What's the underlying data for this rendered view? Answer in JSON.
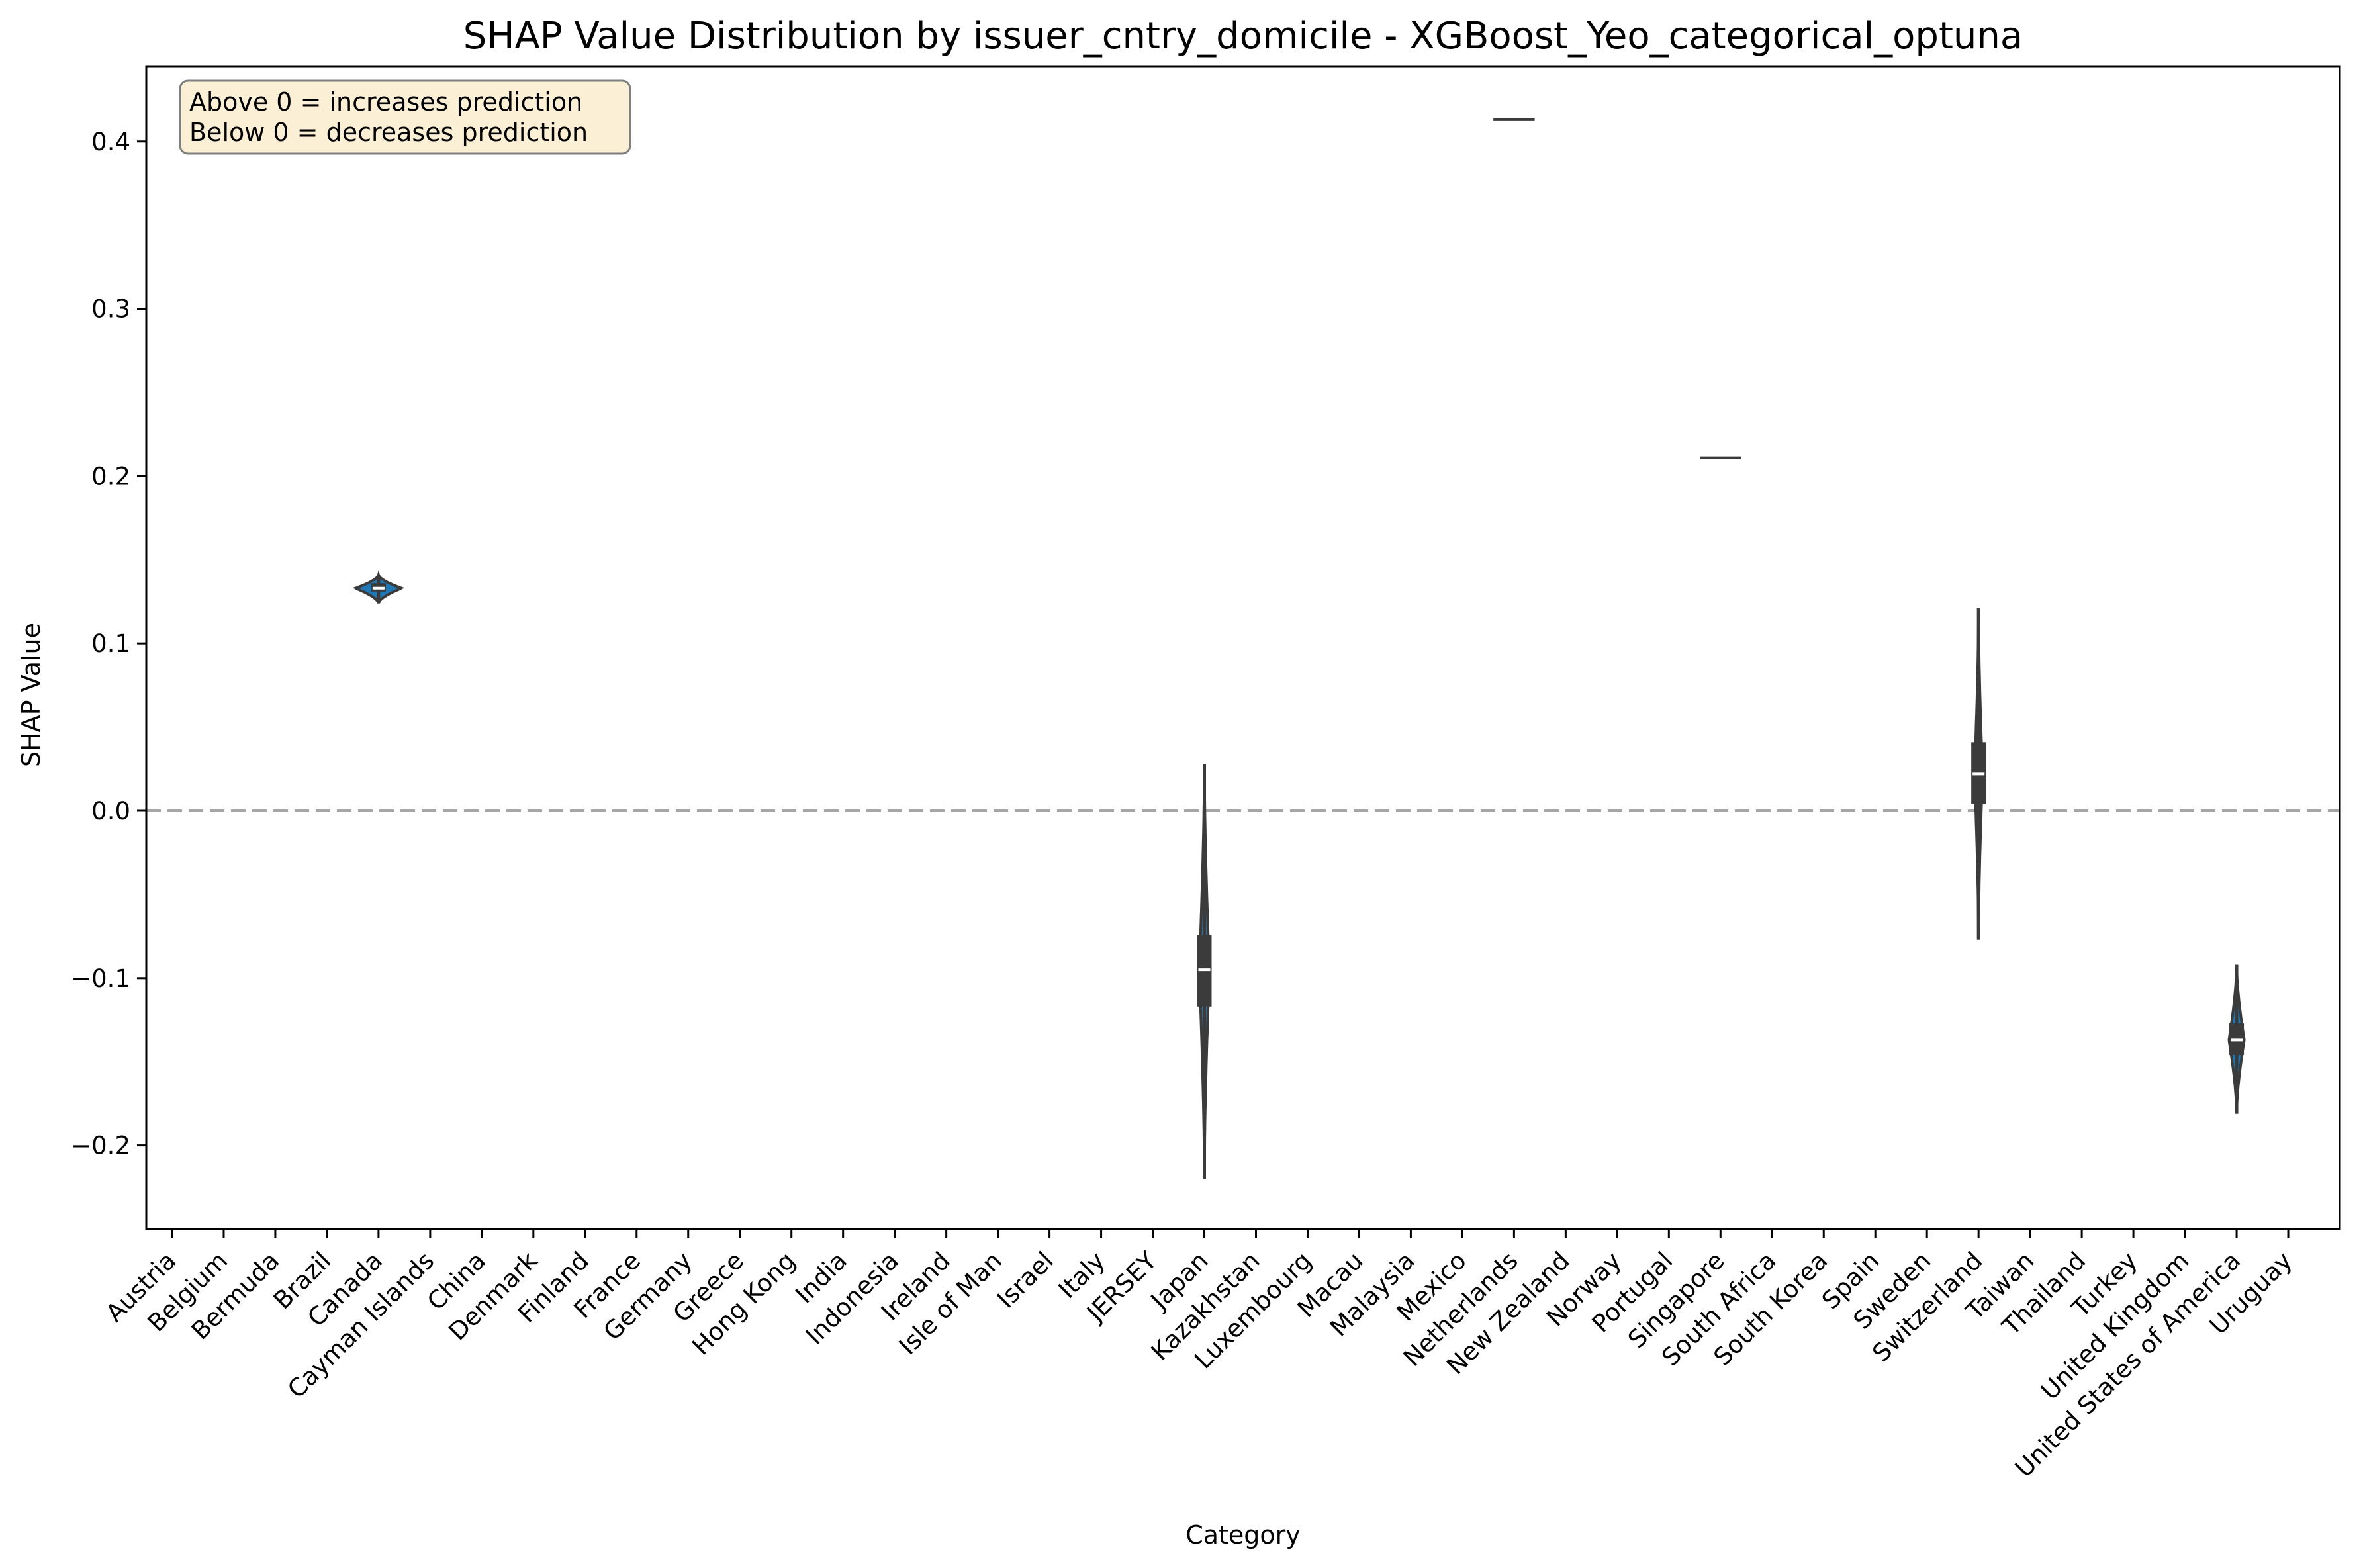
{
  "chart_data": {
    "type": "violin",
    "title": "SHAP Value Distribution by issuer_cntry_domicile - XGBoost_Yeo_categorical_optuna",
    "xlabel": "Category",
    "ylabel": "SHAP Value",
    "ylim": [
      -0.25,
      0.445
    ],
    "yticks": [
      -0.2,
      -0.1,
      0.0,
      0.1,
      0.2,
      0.3,
      0.4
    ],
    "ytick_labels": [
      "−0.2",
      "−0.1",
      "0.0",
      "0.1",
      "0.2",
      "0.3",
      "0.4"
    ],
    "reference_line": {
      "y": 0.0,
      "style": "dashed",
      "color": "#a6a6a6"
    },
    "annotation": [
      "Above 0 = increases prediction",
      "Below 0 = decreases prediction"
    ],
    "categories": [
      "Austria",
      "Belgium",
      "Bermuda",
      "Brazil",
      "Canada",
      "Cayman Islands",
      "China",
      "Denmark",
      "Finland",
      "France",
      "Germany",
      "Greece",
      "Hong Kong",
      "India",
      "Indonesia",
      "Ireland",
      "Isle of Man",
      "Israel",
      "Italy",
      "JERSEY",
      "Japan",
      "Kazakhstan",
      "Luxembourg",
      "Macau",
      "Malaysia",
      "Mexico",
      "Netherlands",
      "New Zealand",
      "Norway",
      "Portugal",
      "Singapore",
      "South Africa",
      "South Korea",
      "Spain",
      "Sweden",
      "Switzerland",
      "Taiwan",
      "Thailand",
      "Turkey",
      "United Kingdom",
      "United States of America",
      "Uruguay"
    ],
    "violins": [
      {
        "category": "Canada",
        "min": 0.124,
        "q1": 0.131,
        "median": 0.133,
        "q3": 0.136,
        "max": 0.141,
        "max_halfwidth": 0.45
      },
      {
        "category": "Japan",
        "min": -0.22,
        "q1": -0.117,
        "median": -0.095,
        "q3": -0.074,
        "max": 0.028,
        "max_halfwidth": 0.1
      },
      {
        "category": "Netherlands",
        "single_value": 0.413
      },
      {
        "category": "Singapore",
        "single_value": 0.211
      },
      {
        "category": "Switzerland",
        "min": -0.077,
        "q1": 0.004,
        "median": 0.022,
        "q3": 0.041,
        "max": 0.121,
        "max_halfwidth": 0.08
      },
      {
        "category": "United States of America",
        "min": -0.181,
        "q1": -0.146,
        "median": -0.137,
        "q3": -0.127,
        "max": -0.092,
        "max_halfwidth": 0.15
      }
    ],
    "colors": {
      "violin_fill": "#1f77b4",
      "violin_edge": "#3b3b3b",
      "box": "#3b3b3b",
      "median": "#ffffff",
      "annotation_bg": "#fbefd6",
      "annotation_edge": "#7f7f7f"
    },
    "grid": false,
    "legend": "none"
  }
}
